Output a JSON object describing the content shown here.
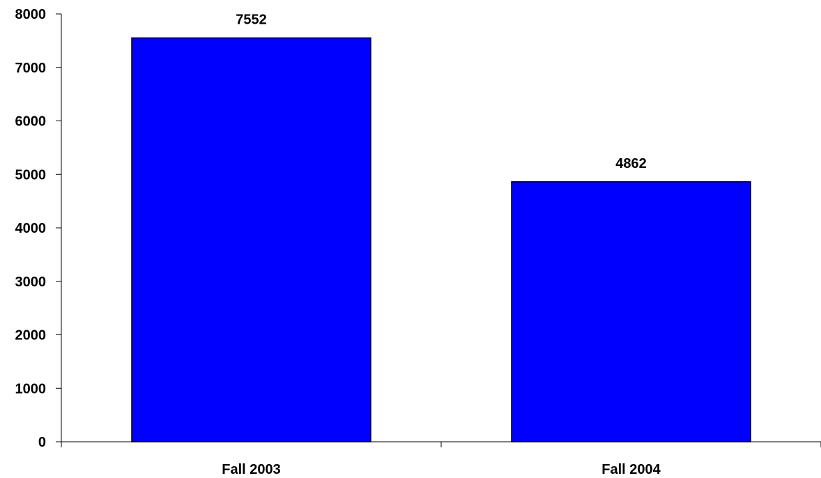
{
  "chart_data": {
    "type": "bar",
    "categories": [
      "Fall 2003",
      "Fall 2004"
    ],
    "values": [
      7552,
      4862
    ],
    "data_labels": [
      "7552",
      "4862"
    ],
    "ylim": [
      0,
      8000
    ],
    "yticks": [
      0,
      1000,
      2000,
      3000,
      4000,
      5000,
      6000,
      7000,
      8000
    ],
    "ytick_labels": [
      "0",
      "1000",
      "2000",
      "3000",
      "4000",
      "5000",
      "6000",
      "7000",
      "8000"
    ],
    "grid": false,
    "bar_color": "#0000FF",
    "bar_edge_color": "#000000"
  }
}
